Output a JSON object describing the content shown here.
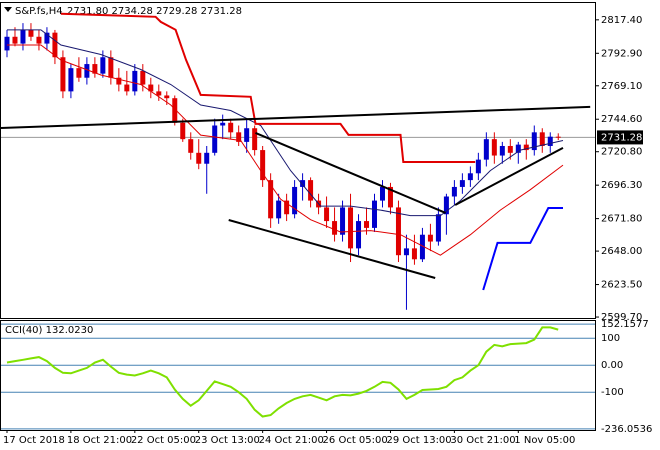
{
  "chart_data": [
    {
      "type": "candlestick",
      "title": "S&P.fs,H4",
      "header_values": "2731.80 2734.28 2729.28 2731.28",
      "bull_color": "#0000cc",
      "bear_color": "#e00000",
      "open": [
        2795,
        2805,
        2800,
        2810,
        2805,
        2800,
        2808,
        2790,
        2765,
        2782,
        2775,
        2785,
        2778,
        2790,
        2775,
        2770,
        2765,
        2780,
        2770,
        2765,
        2762,
        2760,
        2742,
        2730,
        2720,
        2712,
        2720,
        2740,
        2742,
        2735,
        2728,
        2738,
        2722,
        2700,
        2672,
        2685,
        2675,
        2695,
        2700,
        2685,
        2680,
        2670,
        2660,
        2680,
        2650,
        2670,
        2665,
        2685,
        2695,
        2680,
        2645,
        2650,
        2642,
        2660,
        2655,
        2675,
        2688,
        2695,
        2700,
        2705,
        2715,
        2730,
        2718,
        2725,
        2720,
        2726,
        2722,
        2735,
        2725,
        2731.8
      ],
      "high": [
        2810,
        2812,
        2815,
        2815,
        2810,
        2812,
        2810,
        2795,
        2785,
        2790,
        2790,
        2790,
        2795,
        2795,
        2782,
        2780,
        2785,
        2785,
        2775,
        2770,
        2765,
        2762,
        2745,
        2735,
        2730,
        2725,
        2745,
        2748,
        2745,
        2740,
        2745,
        2740,
        2725,
        2705,
        2690,
        2690,
        2700,
        2705,
        2702,
        2690,
        2688,
        2680,
        2685,
        2690,
        2675,
        2680,
        2690,
        2700,
        2698,
        2685,
        2660,
        2660,
        2665,
        2668,
        2680,
        2690,
        2700,
        2705,
        2710,
        2720,
        2735,
        2735,
        2728,
        2730,
        2728,
        2730,
        2740,
        2738,
        2735,
        2734.28
      ],
      "low": [
        2790,
        2798,
        2795,
        2802,
        2795,
        2795,
        2785,
        2760,
        2760,
        2772,
        2770,
        2775,
        2775,
        2770,
        2765,
        2762,
        2762,
        2765,
        2760,
        2758,
        2755,
        2740,
        2728,
        2715,
        2708,
        2690,
        2718,
        2730,
        2730,
        2725,
        2720,
        2718,
        2695,
        2665,
        2668,
        2670,
        2672,
        2685,
        2680,
        2675,
        2665,
        2655,
        2655,
        2640,
        2645,
        2660,
        2662,
        2680,
        2675,
        2640,
        2605,
        2638,
        2640,
        2648,
        2652,
        2660,
        2682,
        2690,
        2695,
        2700,
        2710,
        2712,
        2712,
        2715,
        2712,
        2715,
        2718,
        2720,
        2720,
        2729.28
      ],
      "close": [
        2805,
        2800,
        2810,
        2805,
        2800,
        2808,
        2790,
        2765,
        2782,
        2775,
        2785,
        2778,
        2790,
        2775,
        2770,
        2765,
        2780,
        2770,
        2765,
        2762,
        2760,
        2742,
        2730,
        2720,
        2712,
        2720,
        2740,
        2742,
        2735,
        2728,
        2738,
        2722,
        2700,
        2672,
        2685,
        2675,
        2695,
        2700,
        2685,
        2680,
        2670,
        2660,
        2680,
        2650,
        2670,
        2665,
        2685,
        2695,
        2680,
        2645,
        2650,
        2642,
        2660,
        2655,
        2675,
        2688,
        2695,
        2700,
        2705,
        2715,
        2730,
        2718,
        2725,
        2720,
        2726,
        2722,
        2735,
        2725,
        2731.8,
        2731.28
      ],
      "lines": [
        {
          "color": "#e00000",
          "width": 1,
          "x": [
            0,
            4.25,
            6.75,
            11.75,
            16.75,
            20.5,
            24.25,
            29.25,
            31.75,
            34.25,
            38,
            41.75,
            45.5,
            49.25,
            54.25,
            58,
            61.75,
            65.5,
            69.6
          ],
          "values": [
            2799,
            2799,
            2788,
            2777,
            2770,
            2755,
            2733,
            2729,
            2707,
            2686,
            2671,
            2662,
            2663,
            2660,
            2645,
            2660,
            2678,
            2693,
            2711
          ]
        },
        {
          "color": "#191970",
          "width": 1,
          "x": [
            0,
            4.25,
            6.75,
            11.75,
            16.75,
            20.5,
            24.25,
            28,
            31.75,
            35.5,
            39.25,
            43,
            46.75,
            50.5,
            54.25,
            56.75,
            60.5,
            64.25,
            69.6
          ],
          "values": [
            2810,
            2810,
            2799,
            2792,
            2781,
            2770,
            2755,
            2751,
            2740,
            2707,
            2681,
            2681,
            2678,
            2674,
            2674,
            2685,
            2707,
            2722,
            2729
          ]
        },
        {
          "color": "#e00000",
          "width": 2,
          "x": [
            6.75,
            18.6,
            19.25,
            21.1,
            22.4,
            24.25,
            30.5,
            31.1,
            41.75,
            42.75,
            49.25,
            49.6,
            58.6
          ],
          "values": [
            2821.8,
            2819.6,
            2815.9,
            2810.1,
            2788.1,
            2762.4,
            2761,
            2741.2,
            2741.2,
            2733.1,
            2733.1,
            2713.3,
            2713.3
          ]
        },
        {
          "color": "#0000ff",
          "width": 2,
          "x": [
            59.6,
            61.4,
            65.5,
            67.75,
            69.6
          ],
          "values": [
            2619.5,
            2654,
            2654,
            2679.6,
            2679.6
          ]
        },
        {
          "color": "#000000",
          "width": 2,
          "x": [
            -0.75,
            73
          ],
          "values": [
            2738.2,
            2753.6
          ]
        },
        {
          "color": "#000000",
          "width": 2,
          "x": [
            31.1,
            54.9
          ],
          "values": [
            2734.6,
            2676
          ]
        },
        {
          "color": "#000000",
          "width": 2,
          "x": [
            27.75,
            53.6
          ],
          "values": [
            2670.8,
            2628.3
          ]
        },
        {
          "color": "#000000",
          "width": 2,
          "x": [
            56.1,
            69.6
          ],
          "values": [
            2681.8,
            2723.6
          ]
        }
      ],
      "current_price": 2731.28,
      "xlim": [
        -0.75,
        73.6
      ],
      "ylim": [
        2599,
        2829
      ],
      "yticks": [
        {
          "value": 2817.4,
          "label": "2817.40"
        },
        {
          "value": 2792.9,
          "label": "2792.90"
        },
        {
          "value": 2769.1,
          "label": "2769.10"
        },
        {
          "value": 2744.6,
          "label": "2744.60"
        },
        {
          "value": 2720.8,
          "label": "2720.80"
        },
        {
          "value": 2696.3,
          "label": "2696.30"
        },
        {
          "value": 2671.8,
          "label": "2671.80"
        },
        {
          "value": 2648,
          "label": "2648.00"
        },
        {
          "value": 2623.5,
          "label": "2623.50"
        },
        {
          "value": 2599.7,
          "label": "2599.70"
        }
      ]
    },
    {
      "type": "line",
      "title": "CCI(40) 132.0230",
      "color": "#7fe000",
      "values": [
        10,
        15,
        20,
        25,
        30,
        15,
        -10,
        -28,
        -30,
        -20,
        -10,
        10,
        20,
        -5,
        -28,
        -35,
        -38,
        -30,
        -20,
        -30,
        -45,
        -90,
        -125,
        -150,
        -130,
        -95,
        -60,
        -70,
        -80,
        -100,
        -125,
        -165,
        -190,
        -185,
        -160,
        -140,
        -125,
        -115,
        -110,
        -120,
        -130,
        -115,
        -110,
        -112,
        -105,
        -95,
        -80,
        -62,
        -65,
        -90,
        -125,
        -110,
        -92,
        -90,
        -88,
        -80,
        -55,
        -45,
        -20,
        0,
        50,
        75,
        70,
        78,
        80,
        82,
        95,
        140,
        140,
        132.023
      ],
      "xlim": [
        -0.75,
        73.6
      ],
      "ylim": [
        -240,
        160
      ],
      "grid": true,
      "yticks": [
        152.1577,
        100,
        {
          "value": 0,
          "label": "0.00"
        },
        -100,
        -236.0536
      ],
      "xticks": [
        {
          "value": 0,
          "label": "17 Oct 2018"
        },
        {
          "value": 8,
          "label": "18 Oct 21:00"
        },
        {
          "value": 16,
          "label": "22 Oct 05:00"
        },
        {
          "value": 24,
          "label": "23 Oct 13:00"
        },
        {
          "value": 32,
          "label": "24 Oct 21:00"
        },
        {
          "value": 40,
          "label": "26 Oct 05:00"
        },
        {
          "value": 48,
          "label": "29 Oct 13:00"
        },
        {
          "value": 56,
          "label": "30 Oct 21:00"
        },
        {
          "value": 64,
          "label": "1 Nov 05:00"
        }
      ]
    }
  ]
}
